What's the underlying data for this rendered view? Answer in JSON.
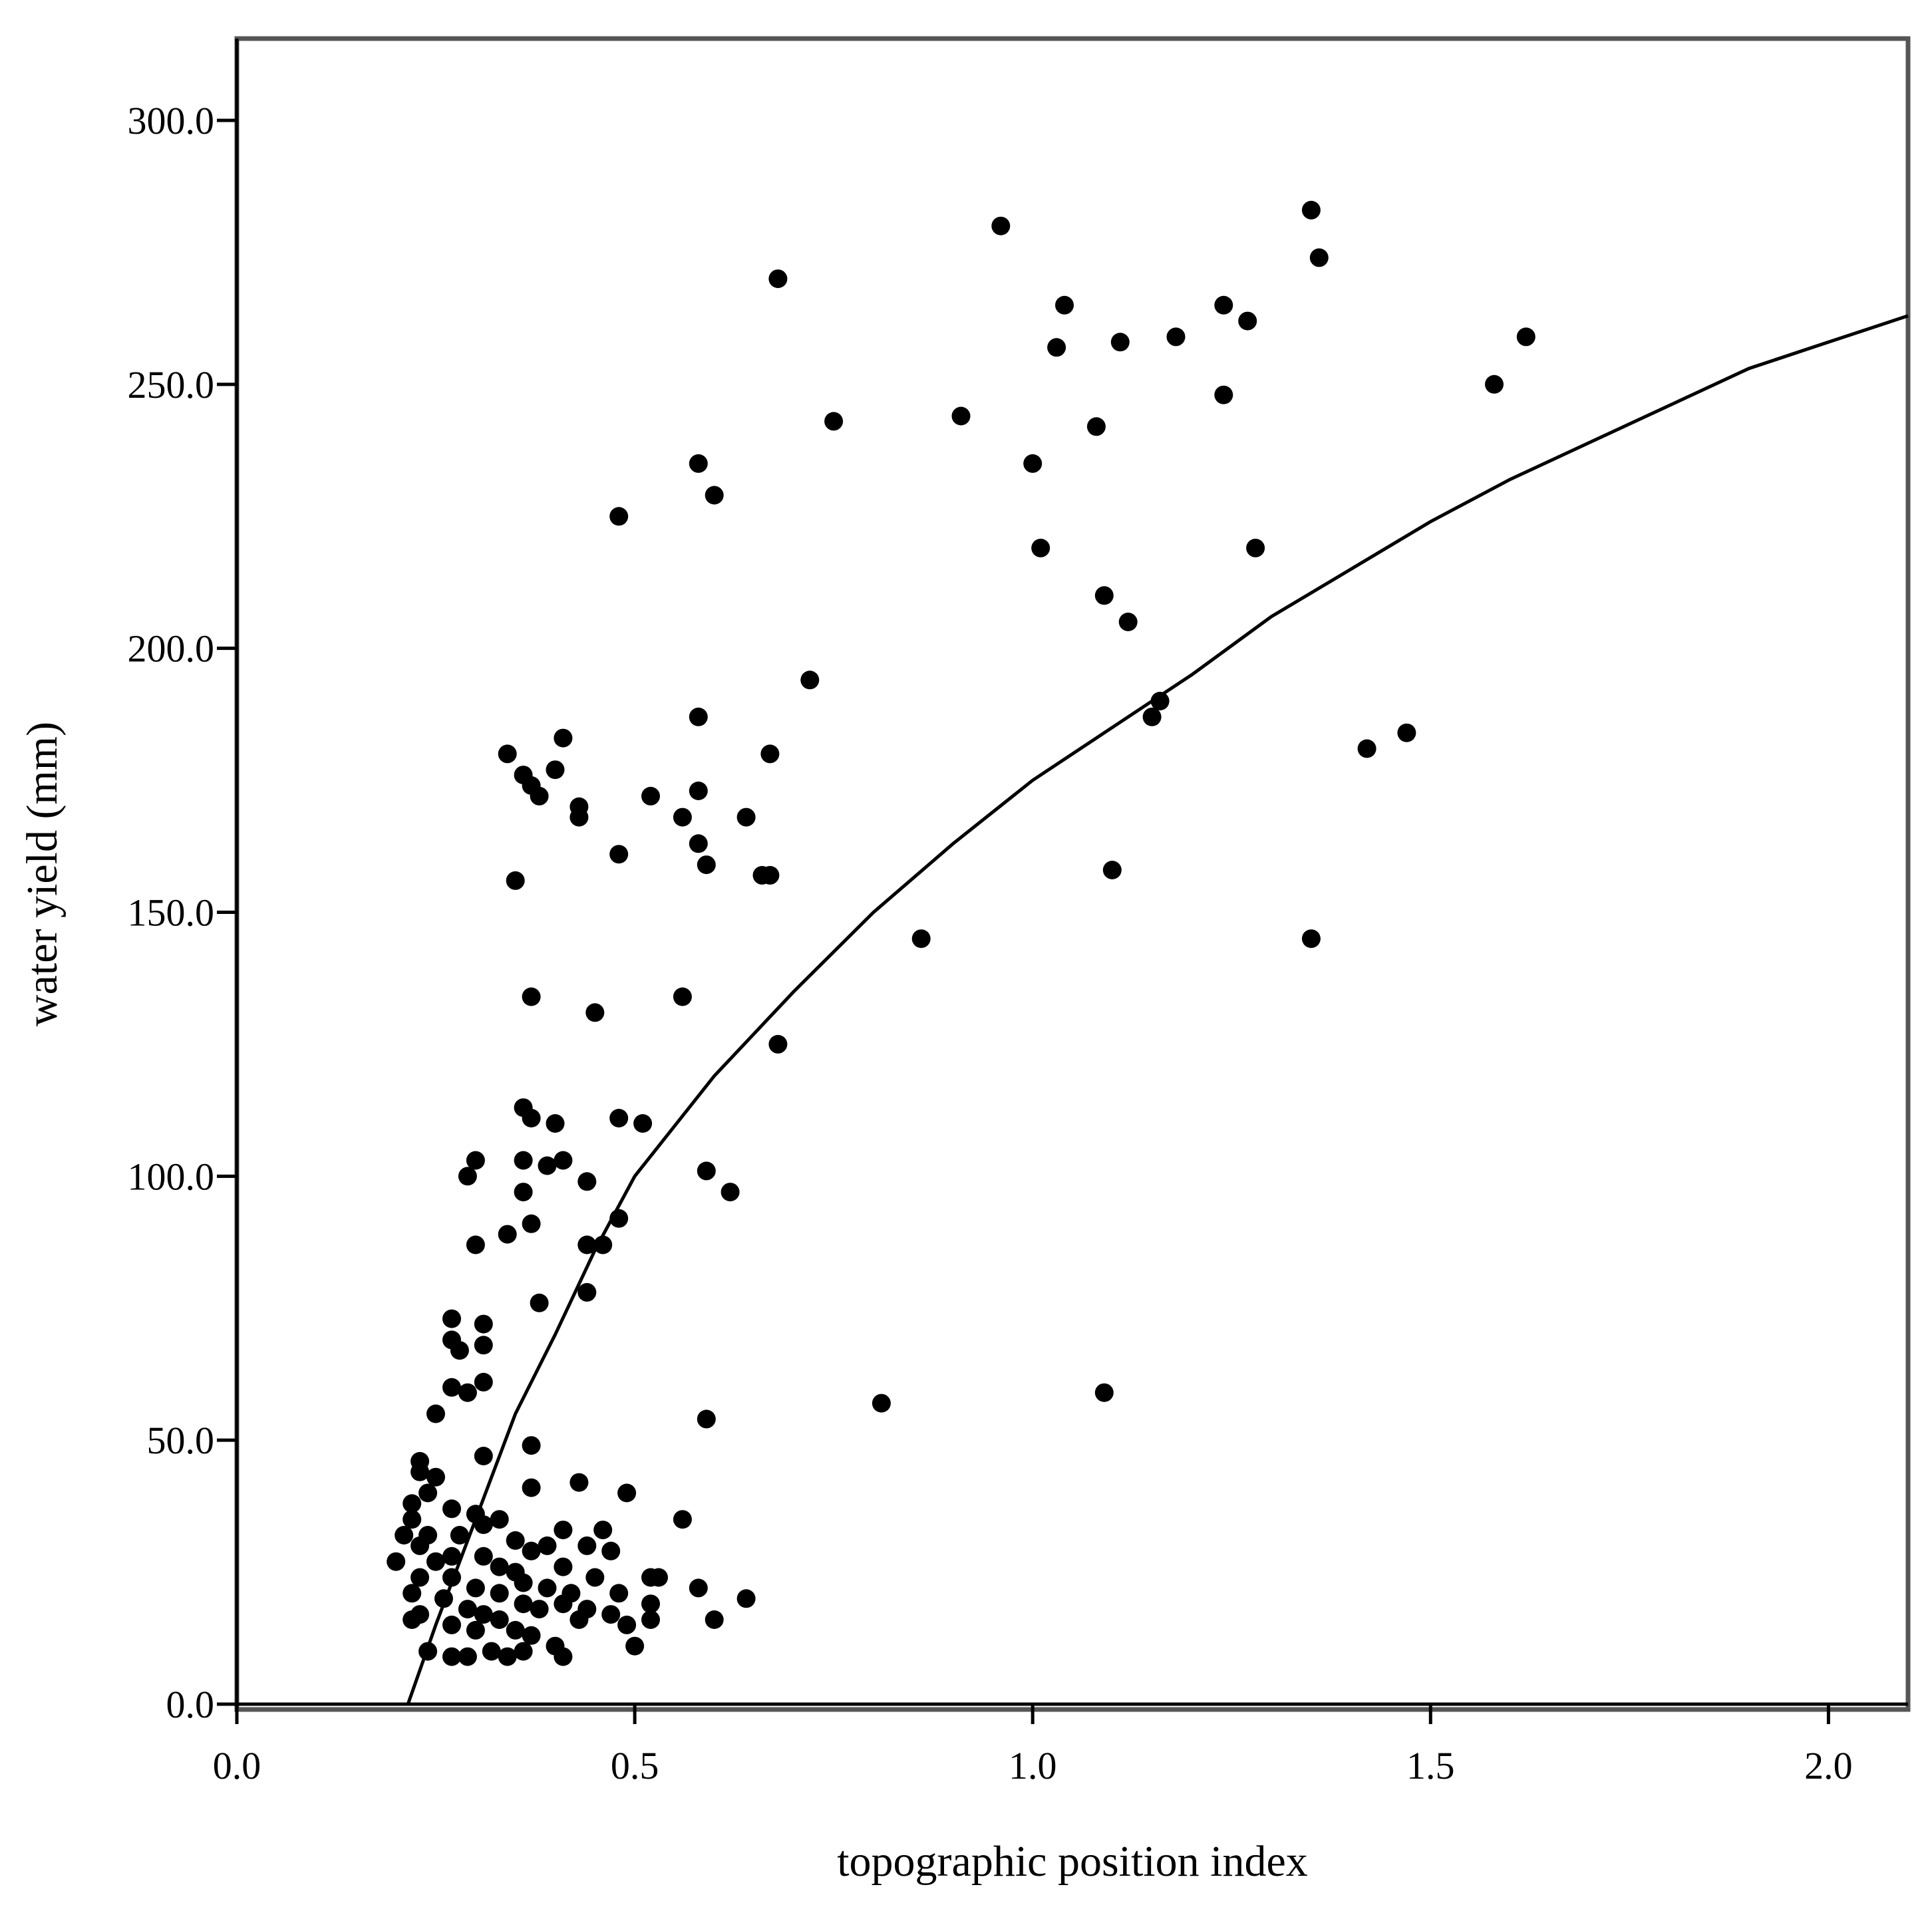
{
  "chart_data": {
    "type": "scatter",
    "title": "",
    "xlabel": "topographic position index",
    "ylabel": "water yield (mm)",
    "xlim": [
      0.0,
      2.1
    ],
    "ylim": [
      0.0,
      315.0
    ],
    "xticks": [
      0.0,
      0.5,
      1.0,
      1.5,
      2.0
    ],
    "xtick_labels": [
      "0.0",
      "0.5",
      "1.0",
      "1.5",
      "2.0"
    ],
    "yticks": [
      0,
      50,
      100,
      150,
      200,
      250,
      300
    ],
    "ytick_labels": [
      "0.0",
      "50.0",
      "100.0",
      "150.0",
      "200.0",
      "250.0",
      "300.0"
    ],
    "grid": false,
    "legend": "none",
    "colors": {
      "points": "#000000",
      "line": "#000000",
      "frame": "#555555"
    },
    "fit_curve": {
      "model": "logarithmic",
      "points": [
        [
          0.215,
          0
        ],
        [
          0.25,
          15
        ],
        [
          0.3,
          35
        ],
        [
          0.35,
          55
        ],
        [
          0.4,
          70
        ],
        [
          0.45,
          86
        ],
        [
          0.5,
          100
        ],
        [
          0.6,
          119
        ],
        [
          0.7,
          135
        ],
        [
          0.8,
          150
        ],
        [
          0.9,
          163
        ],
        [
          1.0,
          175
        ],
        [
          1.1,
          185
        ],
        [
          1.2,
          195
        ],
        [
          1.3,
          206
        ],
        [
          1.4,
          215
        ],
        [
          1.5,
          224
        ],
        [
          1.6,
          232
        ],
        [
          1.7,
          239
        ],
        [
          1.8,
          246
        ],
        [
          1.9,
          253
        ],
        [
          2.0,
          258
        ],
        [
          2.1,
          263
        ]
      ]
    },
    "series": [
      {
        "points": [
          [
            1.35,
            283
          ],
          [
            0.96,
            280
          ],
          [
            1.36,
            274
          ],
          [
            0.68,
            270
          ],
          [
            1.04,
            265
          ],
          [
            1.24,
            265
          ],
          [
            1.27,
            262
          ],
          [
            1.62,
            259
          ],
          [
            1.18,
            259
          ],
          [
            1.11,
            258
          ],
          [
            1.03,
            257
          ],
          [
            1.58,
            250
          ],
          [
            1.24,
            248
          ],
          [
            0.91,
            244
          ],
          [
            0.75,
            243
          ],
          [
            1.08,
            242
          ],
          [
            0.58,
            235
          ],
          [
            1.0,
            235
          ],
          [
            0.6,
            229
          ],
          [
            0.48,
            225
          ],
          [
            1.01,
            219
          ],
          [
            1.28,
            219
          ],
          [
            1.09,
            210
          ],
          [
            1.12,
            205
          ],
          [
            0.72,
            194
          ],
          [
            1.16,
            190
          ],
          [
            1.15,
            187
          ],
          [
            0.58,
            187
          ],
          [
            1.47,
            184
          ],
          [
            0.41,
            183
          ],
          [
            1.42,
            181
          ],
          [
            0.34,
            180
          ],
          [
            0.67,
            180
          ],
          [
            0.4,
            177
          ],
          [
            0.36,
            176
          ],
          [
            0.37,
            174
          ],
          [
            0.58,
            173
          ],
          [
            0.38,
            172
          ],
          [
            0.52,
            172
          ],
          [
            0.43,
            170
          ],
          [
            0.64,
            168
          ],
          [
            0.43,
            168
          ],
          [
            0.56,
            168
          ],
          [
            0.58,
            163
          ],
          [
            0.48,
            161
          ],
          [
            0.59,
            159
          ],
          [
            1.1,
            158
          ],
          [
            0.66,
            157
          ],
          [
            0.67,
            157
          ],
          [
            0.35,
            156
          ],
          [
            0.86,
            145
          ],
          [
            1.35,
            145
          ],
          [
            0.37,
            134
          ],
          [
            0.56,
            134
          ],
          [
            0.45,
            131
          ],
          [
            0.68,
            125
          ],
          [
            0.36,
            113
          ],
          [
            0.37,
            111
          ],
          [
            0.48,
            111
          ],
          [
            0.4,
            110
          ],
          [
            0.51,
            110
          ],
          [
            0.3,
            103
          ],
          [
            0.36,
            103
          ],
          [
            0.39,
            102
          ],
          [
            0.41,
            103
          ],
          [
            0.29,
            100
          ],
          [
            0.59,
            101
          ],
          [
            0.44,
            99
          ],
          [
            0.36,
            97
          ],
          [
            0.62,
            97
          ],
          [
            0.48,
            92
          ],
          [
            0.37,
            91
          ],
          [
            0.34,
            89
          ],
          [
            0.3,
            87
          ],
          [
            0.44,
            87
          ],
          [
            0.46,
            87
          ],
          [
            0.44,
            78
          ],
          [
            0.38,
            76
          ],
          [
            0.27,
            73
          ],
          [
            0.31,
            72
          ],
          [
            0.27,
            69
          ],
          [
            0.28,
            67
          ],
          [
            0.31,
            68
          ],
          [
            0.31,
            61
          ],
          [
            0.27,
            60
          ],
          [
            0.29,
            59
          ],
          [
            0.81,
            57
          ],
          [
            1.09,
            59
          ],
          [
            0.25,
            55
          ],
          [
            0.59,
            54
          ],
          [
            0.37,
            49
          ],
          [
            0.31,
            47
          ],
          [
            0.23,
            46
          ],
          [
            0.23,
            44
          ],
          [
            0.25,
            43
          ],
          [
            0.43,
            42
          ],
          [
            0.37,
            41
          ],
          [
            0.49,
            40
          ],
          [
            0.24,
            40
          ],
          [
            0.22,
            38
          ],
          [
            0.27,
            37
          ],
          [
            0.3,
            36
          ],
          [
            0.22,
            35
          ],
          [
            0.31,
            34
          ],
          [
            0.33,
            35
          ],
          [
            0.56,
            35
          ],
          [
            0.41,
            33
          ],
          [
            0.24,
            32
          ],
          [
            0.46,
            33
          ],
          [
            0.21,
            32
          ],
          [
            0.28,
            32
          ],
          [
            0.35,
            31
          ],
          [
            0.39,
            30
          ],
          [
            0.44,
            30
          ],
          [
            0.47,
            29
          ],
          [
            0.23,
            30
          ],
          [
            0.37,
            29
          ],
          [
            0.27,
            28
          ],
          [
            0.31,
            28
          ],
          [
            0.2,
            27
          ],
          [
            0.25,
            27
          ],
          [
            0.33,
            26
          ],
          [
            0.41,
            26
          ],
          [
            0.35,
            25
          ],
          [
            0.27,
            24
          ],
          [
            0.45,
            24
          ],
          [
            0.52,
            24
          ],
          [
            0.53,
            24
          ],
          [
            0.23,
            24
          ],
          [
            0.36,
            23
          ],
          [
            0.3,
            22
          ],
          [
            0.39,
            22
          ],
          [
            0.58,
            22
          ],
          [
            0.22,
            21
          ],
          [
            0.33,
            21
          ],
          [
            0.42,
            21
          ],
          [
            0.48,
            21
          ],
          [
            0.64,
            20
          ],
          [
            0.26,
            20
          ],
          [
            0.36,
            19
          ],
          [
            0.41,
            19
          ],
          [
            0.52,
            19
          ],
          [
            0.29,
            18
          ],
          [
            0.44,
            18
          ],
          [
            0.38,
            18
          ],
          [
            0.23,
            17
          ],
          [
            0.31,
            17
          ],
          [
            0.47,
            17
          ],
          [
            0.33,
            16
          ],
          [
            0.43,
            16
          ],
          [
            0.52,
            16
          ],
          [
            0.6,
            16
          ],
          [
            0.22,
            16
          ],
          [
            0.27,
            15
          ],
          [
            0.49,
            15
          ],
          [
            0.35,
            14
          ],
          [
            0.3,
            14
          ],
          [
            0.37,
            13
          ],
          [
            0.4,
            11
          ],
          [
            0.5,
            11
          ],
          [
            0.24,
            10
          ],
          [
            0.29,
            9
          ],
          [
            0.32,
            10
          ],
          [
            0.34,
            9
          ],
          [
            0.41,
            9
          ],
          [
            0.27,
            9
          ],
          [
            0.36,
            10
          ]
        ]
      }
    ]
  }
}
